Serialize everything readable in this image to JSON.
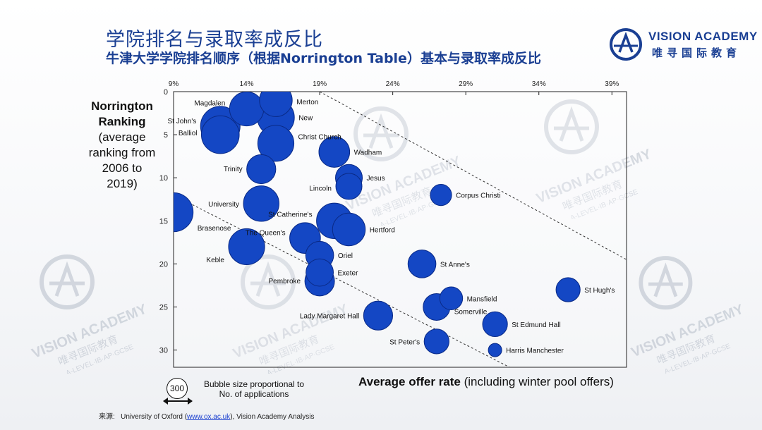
{
  "slide": {
    "title": "学院排名与录取率成反比",
    "subtitle": "牛津大学学院排名顺序（根据Norrington Table）基本与录取率成反比"
  },
  "logo": {
    "name": "VISION ACADEMY",
    "chinese": "唯寻国际教育"
  },
  "watermark": {
    "name": "VISION ACADEMY",
    "chinese": "唯寻国际教育",
    "tagline": "A-LEVEL·IB·AP·GCSE"
  },
  "axis_titles": {
    "y_bold_1": "Norrington",
    "y_bold_2": "Ranking",
    "y_rest": [
      "(average",
      "ranking from",
      "2006 to",
      "2019)"
    ],
    "x_bold": "Average offer rate",
    "x_rest": " (including winter pool offers)"
  },
  "legend": {
    "bubble_value": "300",
    "text_line1": "Bubble size proportional to",
    "text_line2": "No. of applications"
  },
  "source": {
    "prefix": "来源:",
    "org": "University of Oxford (",
    "link": "www.ox.ac.uk",
    "suffix": "), Vision Academy Analysis"
  },
  "colors": {
    "bubble": "#1447c4",
    "bubble_stroke": "#0a2a86",
    "title": "#1a3f93",
    "guide_line": "#333333"
  },
  "chart_data": {
    "type": "scatter",
    "x_ticks": [
      "9%",
      "14%",
      "19%",
      "24%",
      "29%",
      "34%",
      "39%"
    ],
    "x_tick_values": [
      9,
      14,
      19,
      24,
      29,
      34,
      39
    ],
    "y_ticks": [
      0,
      5,
      10,
      15,
      20,
      25,
      30
    ],
    "xlim": [
      9,
      40
    ],
    "ylim": [
      0,
      32
    ],
    "y_inverted": true,
    "grid": false,
    "guide_lines": [
      {
        "x1": 19,
        "y1": 0,
        "x2": 40,
        "y2": 19.5
      },
      {
        "x1": 9,
        "y1": 12,
        "x2": 32,
        "y2": 32
      }
    ],
    "points": [
      {
        "label": "Merton",
        "x": 16.0,
        "y": 1.0,
        "size": 330
      },
      {
        "label": "Magdalen",
        "x": 14.0,
        "y": 2.0,
        "size": 360
      },
      {
        "label": "New",
        "x": 16.0,
        "y": 3.0,
        "size": 420
      },
      {
        "label": "St John's",
        "x": 12.2,
        "y": 4.0,
        "size": 480
      },
      {
        "label": "Balliol",
        "x": 12.2,
        "y": 5.0,
        "size": 440
      },
      {
        "label": "Christ Church",
        "x": 16.0,
        "y": 6.0,
        "size": 400
      },
      {
        "label": "Wadham",
        "x": 20.0,
        "y": 7.0,
        "size": 290
      },
      {
        "label": "Trinity",
        "x": 15.0,
        "y": 9.0,
        "size": 260
      },
      {
        "label": "Jesus",
        "x": 21.0,
        "y": 10.0,
        "size": 220
      },
      {
        "label": "Lincoln",
        "x": 21.0,
        "y": 11.0,
        "size": 210
      },
      {
        "label": "Corpus Christi",
        "x": 27.3,
        "y": 12.0,
        "size": 140
      },
      {
        "label": "University",
        "x": 15.0,
        "y": 13.0,
        "size": 390
      },
      {
        "label": "St Catherine's",
        "x": 20.0,
        "y": 15.0,
        "size": 390
      },
      {
        "label": "Brasenose",
        "x": 9.0,
        "y": 14.0,
        "size": 470
      },
      {
        "label": "Hertford",
        "x": 21.0,
        "y": 16.0,
        "size": 330
      },
      {
        "label": "The Queen's",
        "x": 18.0,
        "y": 17.0,
        "size": 290
      },
      {
        "label": "Keble",
        "x": 14.0,
        "y": 18.0,
        "size": 400
      },
      {
        "label": "Oriel",
        "x": 19.0,
        "y": 19.0,
        "size": 240
      },
      {
        "label": "St Anne's",
        "x": 26.0,
        "y": 20.0,
        "size": 240
      },
      {
        "label": "Exeter",
        "x": 19.0,
        "y": 21.0,
        "size": 230
      },
      {
        "label": "Pembroke",
        "x": 19.0,
        "y": 22.0,
        "size": 270
      },
      {
        "label": "St Hugh's",
        "x": 36.0,
        "y": 23.0,
        "size": 180
      },
      {
        "label": "Mansfield",
        "x": 28.0,
        "y": 24.0,
        "size": 160
      },
      {
        "label": "Somerville",
        "x": 27.0,
        "y": 25.0,
        "size": 220
      },
      {
        "label": "Lady Margaret Hall",
        "x": 23.0,
        "y": 26.0,
        "size": 260
      },
      {
        "label": "St Edmund Hall",
        "x": 31.0,
        "y": 27.0,
        "size": 190
      },
      {
        "label": "St Peter's",
        "x": 27.0,
        "y": 29.0,
        "size": 190
      },
      {
        "label": "Harris Manchester",
        "x": 31.0,
        "y": 30.0,
        "size": 55
      }
    ]
  }
}
